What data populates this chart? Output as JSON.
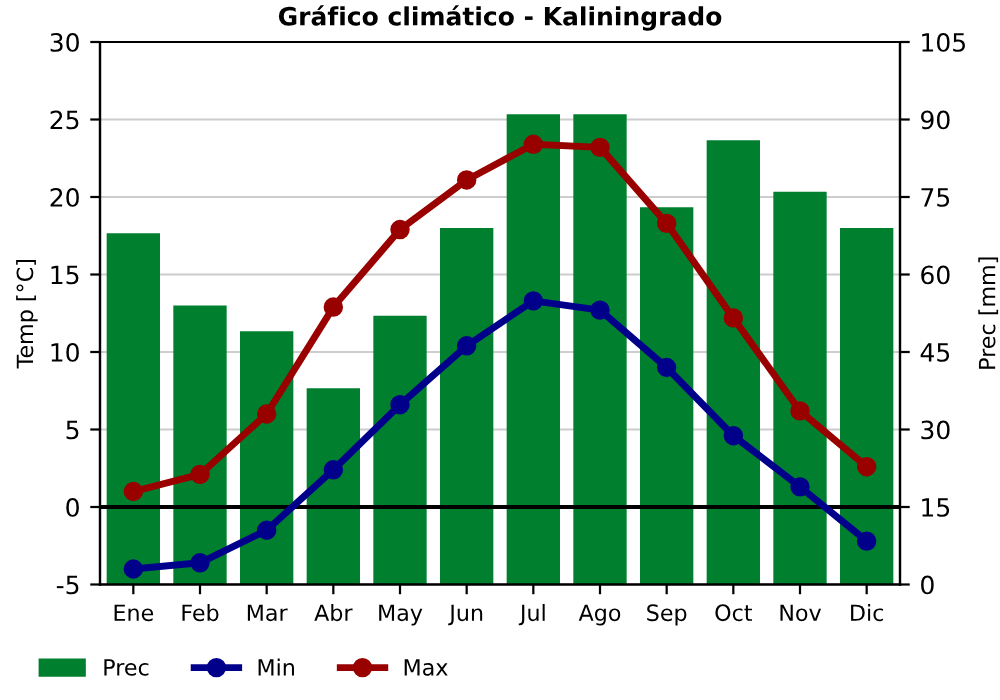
{
  "chart_data": {
    "type": "line",
    "title": "Gráfico climático - Kaliningrado",
    "ylabel": "Temp [°C]",
    "y2label": "Prec [mm]",
    "categories": [
      "Ene",
      "Feb",
      "Mar",
      "Abr",
      "May",
      "Jun",
      "Jul",
      "Ago",
      "Sep",
      "Oct",
      "Nov",
      "Dic"
    ],
    "series": [
      {
        "name": "Prec",
        "type": "bar",
        "axis": "y2",
        "color": "#007f2e",
        "values": [
          68,
          54,
          49,
          38,
          52,
          69,
          91,
          91,
          73,
          86,
          76,
          69
        ]
      },
      {
        "name": "Min",
        "color": "#00008b",
        "values": [
          -4.0,
          -3.6,
          -1.5,
          2.4,
          6.6,
          10.4,
          13.3,
          12.7,
          9.0,
          4.6,
          1.3,
          -2.2
        ]
      },
      {
        "name": "Max",
        "color": "#990000",
        "values": [
          1.0,
          2.1,
          6.0,
          12.9,
          17.9,
          21.1,
          23.4,
          23.2,
          18.3,
          12.2,
          6.2,
          2.6
        ]
      }
    ],
    "ylim": [
      -5,
      30
    ],
    "yticks": [
      -5,
      0,
      5,
      10,
      15,
      20,
      25,
      30
    ],
    "y2lim": [
      0,
      105
    ],
    "y2ticks": [
      0,
      15,
      30,
      45,
      60,
      75,
      90,
      105
    ],
    "ref_lines": [
      {
        "axis": "y",
        "value": 0,
        "color": "#000000"
      }
    ],
    "grid": "y",
    "legend": "bottom",
    "marker": "circle",
    "line_style": "solid"
  }
}
